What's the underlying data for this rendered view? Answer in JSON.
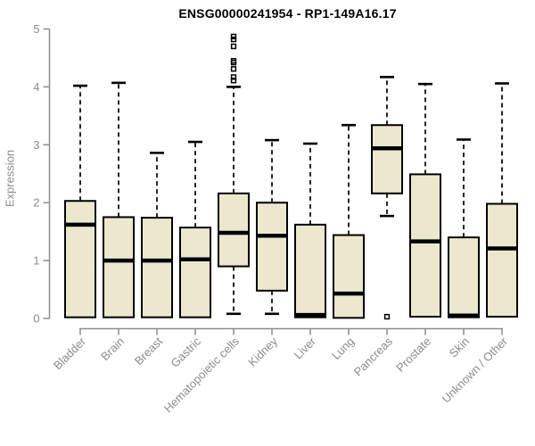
{
  "figure": {
    "title": "ENSG00000241954 - RP1-149A16.17",
    "ylabel": "Expression"
  },
  "chart_data": {
    "type": "box",
    "title": "ENSG00000241954 - RP1-149A16.17",
    "xlabel": "",
    "ylabel": "Expression",
    "ylim": [
      0,
      5
    ],
    "yticks": [
      0,
      1,
      2,
      3,
      4,
      5
    ],
    "grid": false,
    "legend": false,
    "categories": [
      "Bladder",
      "Brain",
      "Breast",
      "Gastric",
      "Hematopoietic cells",
      "Kidney",
      "Liver",
      "Lung",
      "Pancreas",
      "Prostate",
      "Skin",
      "Unknown / Other"
    ],
    "series": [
      {
        "name": "Bladder",
        "whisker_low": 0.02,
        "q1": 0.02,
        "median": 1.62,
        "q3": 2.03,
        "whisker_high": 4.02,
        "outliers": []
      },
      {
        "name": "Brain",
        "whisker_low": 0.02,
        "q1": 0.02,
        "median": 1.0,
        "q3": 1.75,
        "whisker_high": 4.07,
        "outliers": []
      },
      {
        "name": "Breast",
        "whisker_low": 0.02,
        "q1": 0.02,
        "median": 1.0,
        "q3": 1.74,
        "whisker_high": 2.86,
        "outliers": []
      },
      {
        "name": "Gastric",
        "whisker_low": 0.02,
        "q1": 0.02,
        "median": 1.02,
        "q3": 1.57,
        "whisker_high": 3.05,
        "outliers": []
      },
      {
        "name": "Hematopoietic cells",
        "whisker_low": 0.08,
        "q1": 0.9,
        "median": 1.48,
        "q3": 2.16,
        "whisker_high": 4.0,
        "outliers": [
          4.87,
          4.82,
          4.7,
          4.45,
          4.42,
          4.31,
          4.17,
          4.11
        ]
      },
      {
        "name": "Kidney",
        "whisker_low": 0.08,
        "q1": 0.48,
        "median": 1.43,
        "q3": 2.0,
        "whisker_high": 3.08,
        "outliers": []
      },
      {
        "name": "Liver",
        "whisker_low": 0.02,
        "q1": 0.02,
        "median": 0.06,
        "q3": 1.62,
        "whisker_high": 3.02,
        "outliers": []
      },
      {
        "name": "Lung",
        "whisker_low": 0.01,
        "q1": 0.01,
        "median": 0.43,
        "q3": 1.44,
        "whisker_high": 3.34,
        "outliers": []
      },
      {
        "name": "Pancreas",
        "whisker_low": 1.77,
        "q1": 2.16,
        "median": 2.94,
        "q3": 3.34,
        "whisker_high": 4.17,
        "outliers": [
          0.03
        ]
      },
      {
        "name": "Prostate",
        "whisker_low": 0.03,
        "q1": 0.03,
        "median": 1.33,
        "q3": 2.49,
        "whisker_high": 4.05,
        "outliers": []
      },
      {
        "name": "Skin",
        "whisker_low": 0.02,
        "q1": 0.02,
        "median": 0.05,
        "q3": 1.4,
        "whisker_high": 3.09,
        "outliers": []
      },
      {
        "name": "Unknown / Other",
        "whisker_low": 0.03,
        "q1": 0.03,
        "median": 1.21,
        "q3": 1.98,
        "whisker_high": 4.06,
        "outliers": []
      }
    ],
    "colors": {
      "box_fill": "#ece8cd",
      "box_border": "#000000",
      "median": "#000000",
      "whisker": "#000000",
      "outlier": "#000000",
      "axis": "#8c8c8c",
      "tick_label": "#8c8c8c",
      "title": "#000000",
      "background": "#ffffff"
    }
  }
}
